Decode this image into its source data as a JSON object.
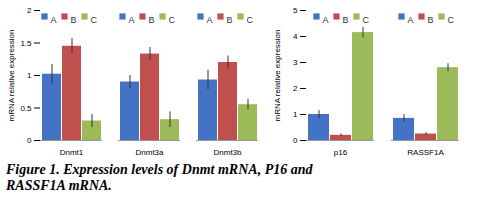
{
  "caption": "Figure 1. Expression levels of Dnmt mRNA, P16 and RASSF1A mRNA.",
  "chart_data": [
    {
      "type": "bar",
      "y_label": "mRNA relative expression",
      "categories": [
        "Dnmt1",
        "Dnmt3a",
        "Dnmt3b"
      ],
      "series": [
        {
          "name": "A",
          "color": "#4472c4",
          "values": [
            1.02,
            0.9,
            0.93
          ],
          "errors": [
            0.15,
            0.1,
            0.15
          ]
        },
        {
          "name": "B",
          "color": "#c0504d",
          "values": [
            1.45,
            1.33,
            1.2
          ],
          "errors": [
            0.12,
            0.1,
            0.1
          ]
        },
        {
          "name": "C",
          "color": "#9bbb59",
          "values": [
            0.3,
            0.32,
            0.55
          ],
          "errors": [
            0.1,
            0.12,
            0.08
          ]
        }
      ],
      "ylim": [
        0,
        2
      ],
      "yticks": [
        0,
        0.5,
        1,
        1.5,
        2
      ],
      "grid": false,
      "legend": "top-right"
    },
    {
      "type": "bar",
      "y_label": "mRNA relative expression",
      "categories": [
        "p16",
        "RASSF1A"
      ],
      "series": [
        {
          "name": "A",
          "color": "#4472c4",
          "values": [
            1.0,
            0.85
          ],
          "errors": [
            0.15,
            0.15
          ]
        },
        {
          "name": "B",
          "color": "#c0504d",
          "values": [
            0.2,
            0.25
          ],
          "errors": [
            0.05,
            0.05
          ]
        },
        {
          "name": "C",
          "color": "#9bbb59",
          "values": [
            4.15,
            2.8
          ],
          "errors": [
            0.2,
            0.15
          ]
        }
      ],
      "ylim": [
        0,
        5
      ],
      "yticks": [
        0,
        1,
        2,
        3,
        4,
        5
      ],
      "grid": false,
      "legend": "top-right"
    }
  ]
}
